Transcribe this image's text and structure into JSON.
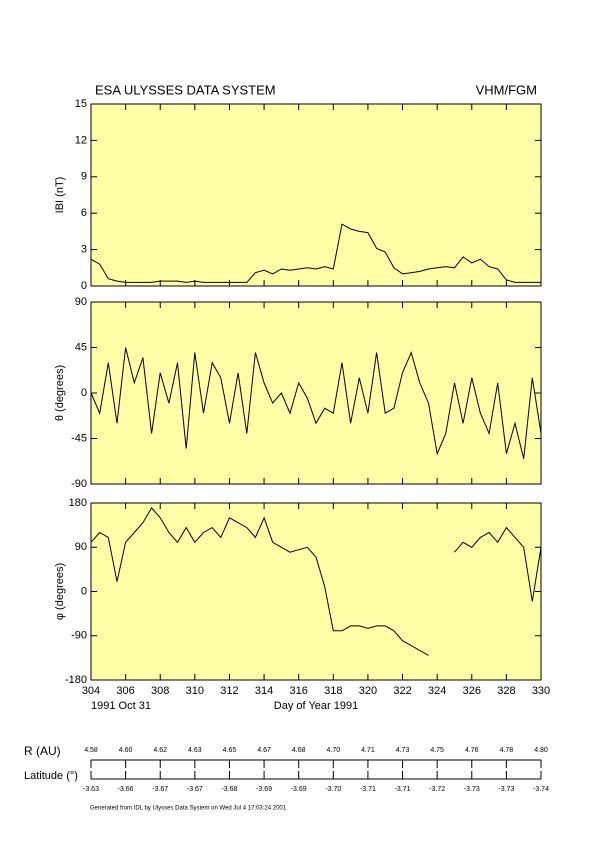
{
  "header": {
    "title": "ESA ULYSSES DATA SYSTEM",
    "instrument": "VHM/FGM"
  },
  "chart_data": [
    {
      "type": "line",
      "ylabel": "IBI (nT)",
      "color": "#000000",
      "xlim": [
        304,
        330
      ],
      "xticks": [
        304,
        306,
        308,
        310,
        312,
        314,
        316,
        318,
        320,
        322,
        324,
        326,
        328,
        330
      ],
      "ylim": [
        0,
        15
      ],
      "yticks": [
        0,
        3,
        6,
        9,
        12,
        15
      ],
      "x": [
        304,
        304.5,
        305,
        305.5,
        306,
        306.5,
        307,
        307.5,
        308,
        308.5,
        309,
        309.5,
        310,
        310.5,
        311,
        311.5,
        312,
        312.5,
        313,
        313.5,
        314,
        314.5,
        315,
        315.5,
        316,
        316.5,
        317,
        317.5,
        318,
        318.5,
        319,
        319.5,
        320,
        320.5,
        321,
        321.5,
        322,
        322.5,
        323,
        323.5,
        324,
        324.5,
        325,
        325.5,
        326,
        326.5,
        327,
        327.5,
        328,
        328.5,
        329,
        329.5,
        330
      ],
      "values": [
        2.2,
        1.8,
        0.6,
        0.4,
        0.3,
        0.3,
        0.3,
        0.3,
        0.4,
        0.4,
        0.4,
        0.3,
        0.4,
        0.3,
        0.3,
        0.3,
        0.3,
        0.3,
        0.3,
        1.1,
        1.3,
        1.0,
        1.4,
        1.3,
        1.4,
        1.5,
        1.4,
        1.6,
        1.4,
        5.1,
        4.7,
        4.5,
        4.4,
        3.1,
        2.8,
        1.5,
        1.0,
        1.1,
        1.2,
        1.4,
        1.5,
        1.6,
        1.5,
        2.4,
        1.9,
        2.2,
        1.6,
        1.4,
        0.5,
        0.3,
        0.3,
        0.3,
        0.3
      ]
    },
    {
      "type": "line",
      "ylabel": "θ (degrees)",
      "color": "#000000",
      "xlim": [
        304,
        330
      ],
      "xticks": [
        304,
        306,
        308,
        310,
        312,
        314,
        316,
        318,
        320,
        322,
        324,
        326,
        328,
        330
      ],
      "ylim": [
        -90,
        90
      ],
      "yticks": [
        -90,
        -45,
        0,
        45,
        90
      ],
      "x": [
        304,
        304.5,
        305,
        305.5,
        306,
        306.5,
        307,
        307.5,
        308,
        308.5,
        309,
        309.5,
        310,
        310.5,
        311,
        311.5,
        312,
        312.5,
        313,
        313.5,
        314,
        314.5,
        315,
        315.5,
        316,
        316.5,
        317,
        317.5,
        318,
        318.5,
        319,
        319.5,
        320,
        320.5,
        321,
        321.5,
        322,
        322.5,
        323,
        323.5,
        324,
        324.5,
        325,
        325.5,
        326,
        326.5,
        327,
        327.5,
        328,
        328.5,
        329,
        329.5,
        330
      ],
      "values": [
        0,
        -20,
        30,
        -30,
        45,
        10,
        35,
        -40,
        20,
        -10,
        30,
        -55,
        40,
        -20,
        30,
        15,
        -30,
        20,
        -40,
        40,
        10,
        -10,
        0,
        -20,
        10,
        -5,
        -30,
        -15,
        -20,
        30,
        -30,
        15,
        -20,
        40,
        -20,
        -15,
        20,
        40,
        10,
        -10,
        -60,
        -40,
        10,
        -30,
        15,
        -20,
        -40,
        10,
        -60,
        -30,
        -65,
        15,
        -40
      ]
    },
    {
      "type": "line",
      "ylabel": "φ (degrees)",
      "xlabel": "Day of Year 1991",
      "date_label": "1991 Oct 31",
      "color": "#000000",
      "xlim": [
        304,
        330
      ],
      "xticks": [
        304,
        306,
        308,
        310,
        312,
        314,
        316,
        318,
        320,
        322,
        324,
        326,
        328,
        330
      ],
      "ylim": [
        -180,
        180
      ],
      "yticks": [
        -180,
        -90,
        0,
        90,
        180
      ],
      "x": [
        304,
        304.5,
        305,
        305.5,
        306,
        306.5,
        307,
        307.5,
        308,
        308.5,
        309,
        309.5,
        310,
        310.5,
        311,
        311.5,
        312,
        312.5,
        313,
        313.5,
        314,
        314.5,
        315,
        315.5,
        316,
        316.5,
        317,
        317.5,
        318,
        318.5,
        319,
        319.5,
        320,
        320.5,
        321,
        321.5,
        322,
        322.5,
        323,
        323.5,
        324,
        324.5,
        325,
        325.5,
        326,
        326.5,
        327,
        327.5,
        328,
        328.5,
        329,
        329.5,
        330
      ],
      "values": [
        100,
        120,
        110,
        20,
        100,
        120,
        140,
        170,
        150,
        120,
        100,
        130,
        100,
        120,
        130,
        110,
        150,
        140,
        130,
        110,
        150,
        100,
        90,
        80,
        85,
        90,
        70,
        10,
        -80,
        -80,
        -70,
        -70,
        -75,
        -70,
        -70,
        -80,
        -100,
        -110,
        -120,
        -130,
        null,
        null,
        80,
        100,
        90,
        110,
        120,
        100,
        130,
        110,
        90,
        -20,
        90
      ]
    }
  ],
  "orbit": {
    "r_label": "R (AU)",
    "r": [
      "4.58",
      "4.60",
      "4.62",
      "4.63",
      "4.65",
      "4.67",
      "4.68",
      "4.70",
      "4.71",
      "4.73",
      "4.75",
      "4.76",
      "4.78",
      "4.80"
    ],
    "lat_label": "Latitude (°)",
    "lat": [
      "-3.63",
      "-3.66",
      "-3.67",
      "-3.67",
      "-3.68",
      "-3.69",
      "-3.69",
      "-3.70",
      "-3.71",
      "-3.71",
      "-3.72",
      "-3.73",
      "-3.73",
      "-3.74"
    ]
  },
  "footer": "Generated from IDL by Ulysses Data System on Wed Jul 4 17:03:24 2001"
}
